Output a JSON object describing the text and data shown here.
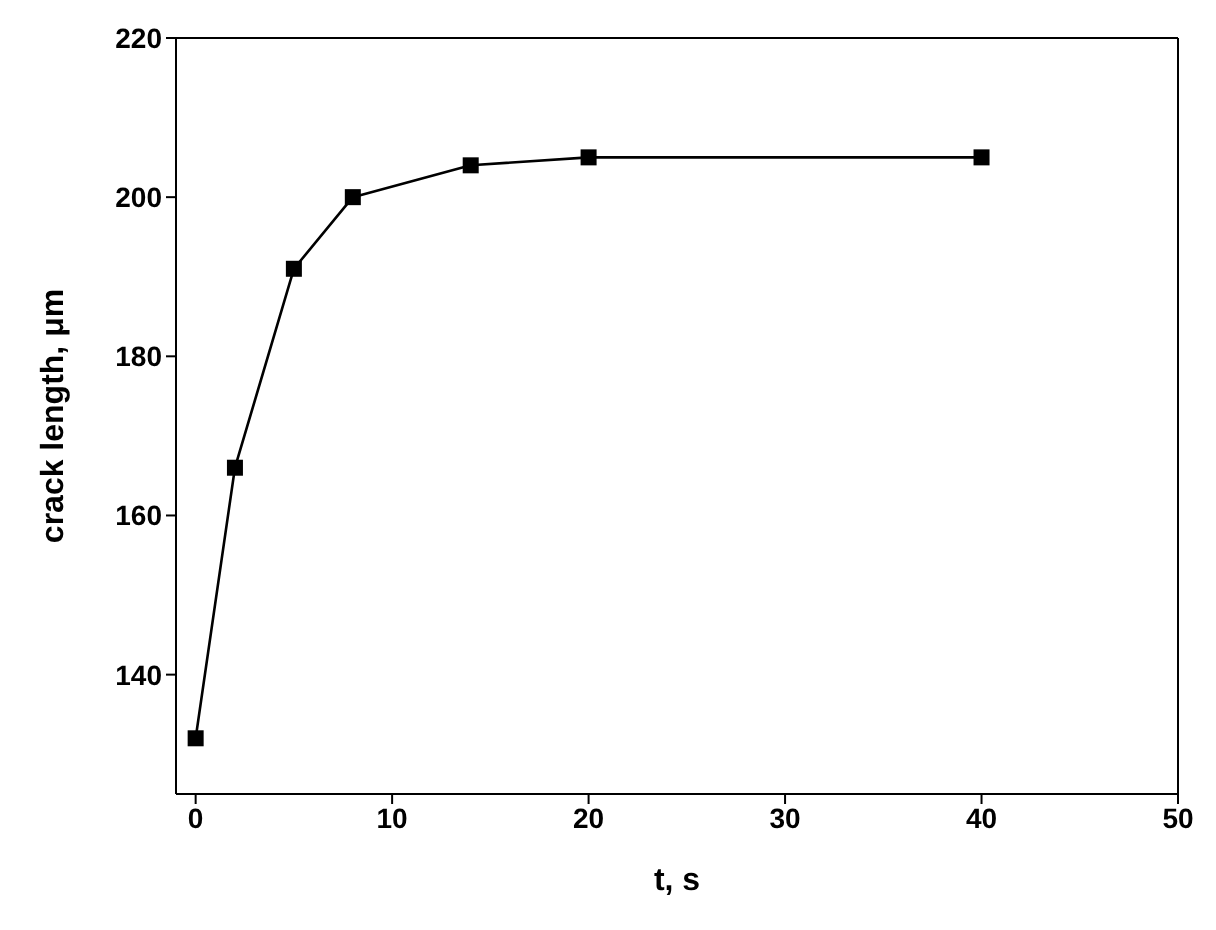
{
  "chart_data": {
    "type": "line",
    "xlabel": "t, s",
    "ylabel": "crack length, μm",
    "x": [
      0,
      2,
      5,
      8,
      14,
      20,
      40
    ],
    "series": [
      {
        "color": "#000000",
        "values": [
          132,
          166,
          191,
          200,
          204,
          205,
          205
        ]
      }
    ],
    "xlim": [
      -1,
      50
    ],
    "xticks": [
      0,
      10,
      20,
      30,
      40,
      50
    ],
    "ylim": [
      125,
      220
    ],
    "yticks": [
      140,
      160,
      180,
      200,
      220
    ],
    "marker": "square",
    "line_style": "solid",
    "grid": false,
    "legend": false
  }
}
